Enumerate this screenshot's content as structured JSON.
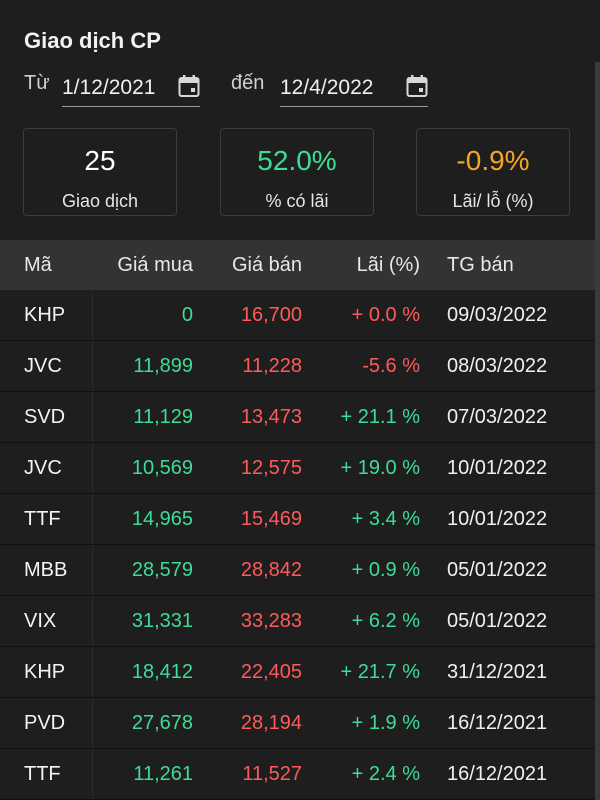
{
  "title": "Giao dịch CP",
  "range": {
    "from_label": "Từ",
    "from_value": "1/12/2021",
    "to_label": "đến",
    "to_value": "12/4/2022"
  },
  "stats": [
    {
      "value": "25",
      "caption": "Giao dịch",
      "color": "#ffffff"
    },
    {
      "value": "52.0%",
      "caption": "% có lãi",
      "color": "#3ddc97"
    },
    {
      "value": "-0.9%",
      "caption": "Lãi/ lỗ (%)",
      "color": "#f5a623"
    }
  ],
  "table": {
    "headers": [
      "Mã",
      "Giá mua",
      "Giá bán",
      "Lãi (%)",
      "TG bán"
    ],
    "rows": [
      {
        "ma": "KHP",
        "buy": "0",
        "sell": "16,700",
        "pct": "+ 0.0 %",
        "pct_sign": "neg",
        "tg": "09/03/2022"
      },
      {
        "ma": "JVC",
        "buy": "11,899",
        "sell": "11,228",
        "pct": "-5.6 %",
        "pct_sign": "neg",
        "tg": "08/03/2022"
      },
      {
        "ma": "SVD",
        "buy": "11,129",
        "sell": "13,473",
        "pct": "+ 21.1 %",
        "pct_sign": "pos",
        "tg": "07/03/2022"
      },
      {
        "ma": "JVC",
        "buy": "10,569",
        "sell": "12,575",
        "pct": "+ 19.0 %",
        "pct_sign": "pos",
        "tg": "10/01/2022"
      },
      {
        "ma": "TTF",
        "buy": "14,965",
        "sell": "15,469",
        "pct": "+ 3.4 %",
        "pct_sign": "pos",
        "tg": "10/01/2022"
      },
      {
        "ma": "MBB",
        "buy": "28,579",
        "sell": "28,842",
        "pct": "+ 0.9 %",
        "pct_sign": "pos",
        "tg": "05/01/2022"
      },
      {
        "ma": "VIX",
        "buy": "31,331",
        "sell": "33,283",
        "pct": "+ 6.2 %",
        "pct_sign": "pos",
        "tg": "05/01/2022"
      },
      {
        "ma": "KHP",
        "buy": "18,412",
        "sell": "22,405",
        "pct": "+ 21.7 %",
        "pct_sign": "pos",
        "tg": "31/12/2021"
      },
      {
        "ma": "PVD",
        "buy": "27,678",
        "sell": "28,194",
        "pct": "+ 1.9 %",
        "pct_sign": "pos",
        "tg": "16/12/2021"
      },
      {
        "ma": "TTF",
        "buy": "11,261",
        "sell": "11,527",
        "pct": "+ 2.4 %",
        "pct_sign": "pos",
        "tg": "16/12/2021"
      }
    ]
  },
  "icons": {
    "calendar": "calendar-icon"
  }
}
